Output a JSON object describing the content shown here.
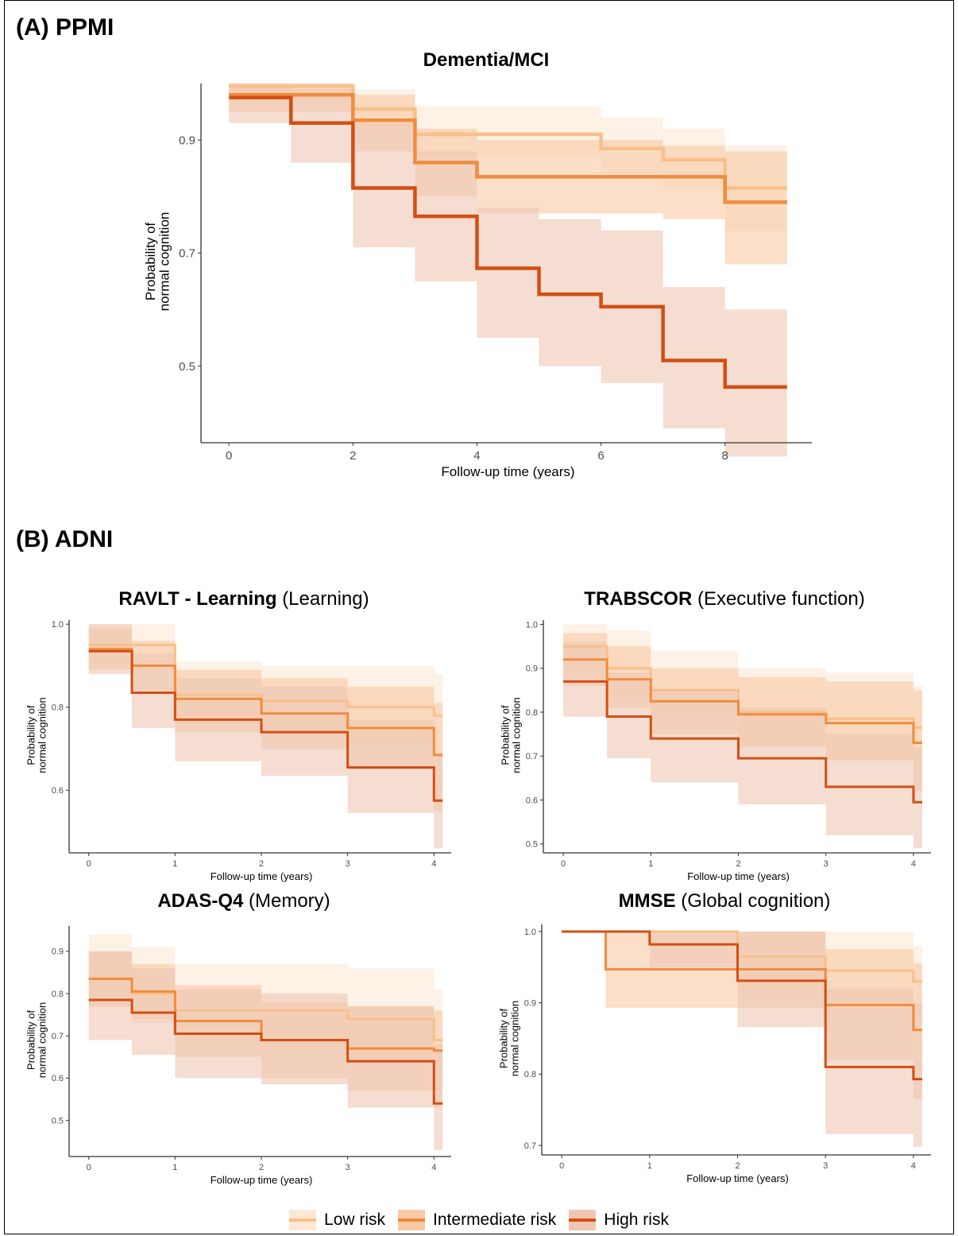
{
  "panels": {
    "a_label": "(A) PPMI",
    "b_label": "(B) ADNI"
  },
  "colors": {
    "low": "#f8c08a",
    "intermediate": "#ef8c3f",
    "high": "#d24f14",
    "low_band": "#fde8d4",
    "intermediate_band": "#f8caa4",
    "high_band": "#efc6b2",
    "axis": "#333333",
    "tick_label": "#4d4d4d"
  },
  "legend": [
    {
      "key": "low",
      "label": "Low risk"
    },
    {
      "key": "intermediate",
      "label": "Intermediate risk"
    },
    {
      "key": "high",
      "label": "High risk"
    }
  ],
  "chart_data": [
    {
      "id": "ppmi",
      "type": "line",
      "step": true,
      "title_bold": "Dementia/MCI",
      "title_rest": "",
      "xlabel": "Follow-up time (years)",
      "ylabel": [
        "Probability of",
        "normal cognition"
      ],
      "xlim": [
        -0.4,
        9.4
      ],
      "ylim": [
        0.37,
        1.0
      ],
      "xticks": [
        0,
        2,
        4,
        6,
        8
      ],
      "yticks": [
        0.5,
        0.7,
        0.9
      ],
      "series": [
        {
          "name": "Low risk",
          "key": "low",
          "x": [
            0,
            1,
            2,
            3,
            4,
            5,
            6,
            7,
            8,
            9
          ],
          "y": [
            0.995,
            0.995,
            0.955,
            0.91,
            0.91,
            0.91,
            0.885,
            0.865,
            0.815,
            0.815
          ],
          "lower": [
            0.97,
            0.97,
            0.92,
            0.87,
            0.87,
            0.87,
            0.84,
            0.81,
            0.74,
            0.74
          ],
          "upper": [
            1.0,
            1.0,
            0.99,
            0.96,
            0.96,
            0.96,
            0.94,
            0.92,
            0.89,
            0.89
          ]
        },
        {
          "name": "Intermediate risk",
          "key": "intermediate",
          "x": [
            0,
            1,
            2,
            3,
            4,
            5,
            6,
            7,
            8,
            9
          ],
          "y": [
            0.98,
            0.98,
            0.935,
            0.86,
            0.835,
            0.835,
            0.835,
            0.835,
            0.79,
            0.79
          ],
          "lower": [
            0.95,
            0.95,
            0.88,
            0.8,
            0.77,
            0.77,
            0.77,
            0.76,
            0.68,
            0.68
          ],
          "upper": [
            1.0,
            1.0,
            0.98,
            0.92,
            0.9,
            0.9,
            0.9,
            0.89,
            0.88,
            0.88
          ]
        },
        {
          "name": "High risk",
          "key": "high",
          "x": [
            0,
            1,
            2,
            3,
            4,
            5,
            6,
            7,
            8,
            9
          ],
          "y": [
            0.975,
            0.93,
            0.815,
            0.765,
            0.673,
            0.627,
            0.605,
            0.51,
            0.463,
            0.463
          ],
          "lower": [
            0.93,
            0.86,
            0.71,
            0.65,
            0.55,
            0.5,
            0.47,
            0.39,
            0.34,
            0.34
          ],
          "upper": [
            1.0,
            0.99,
            0.93,
            0.88,
            0.78,
            0.76,
            0.74,
            0.64,
            0.6,
            0.6
          ]
        }
      ]
    },
    {
      "id": "ravlt",
      "type": "line",
      "step": true,
      "title_bold": "RAVLT - Learning",
      "title_rest": " (Learning)",
      "xlabel": "Follow-up time (years)",
      "ylabel": [
        "Probability of",
        "normal cognition"
      ],
      "xlim": [
        -0.2,
        4.2
      ],
      "ylim": [
        0.455,
        1.01
      ],
      "xticks": [
        0,
        1,
        2,
        3,
        4
      ],
      "yticks": [
        0.6,
        0.8,
        1.0
      ],
      "series": [
        {
          "name": "Low risk",
          "key": "low",
          "x": [
            0,
            0.5,
            1,
            2,
            3,
            4,
            4.1
          ],
          "y": [
            0.95,
            0.95,
            0.83,
            0.815,
            0.8,
            0.78,
            0.78
          ],
          "lower": [
            0.9,
            0.9,
            0.76,
            0.74,
            0.71,
            0.68,
            0.68
          ],
          "upper": [
            1.0,
            1.0,
            0.91,
            0.9,
            0.9,
            0.88,
            0.88
          ]
        },
        {
          "name": "Intermediate risk",
          "key": "intermediate",
          "x": [
            0,
            0.5,
            1,
            2,
            3,
            4,
            4.1
          ],
          "y": [
            0.94,
            0.9,
            0.82,
            0.785,
            0.75,
            0.685,
            0.685
          ],
          "lower": [
            0.89,
            0.84,
            0.74,
            0.7,
            0.65,
            0.55,
            0.55
          ],
          "upper": [
            0.99,
            0.96,
            0.89,
            0.87,
            0.85,
            0.81,
            0.81
          ]
        },
        {
          "name": "High risk",
          "key": "high",
          "x": [
            0,
            0.5,
            1,
            2,
            3,
            4,
            4.1
          ],
          "y": [
            0.935,
            0.835,
            0.77,
            0.74,
            0.655,
            0.575,
            0.575
          ],
          "lower": [
            0.88,
            0.75,
            0.67,
            0.635,
            0.545,
            0.46,
            0.46
          ],
          "upper": [
            1.0,
            0.93,
            0.87,
            0.85,
            0.77,
            0.69,
            0.69
          ]
        }
      ]
    },
    {
      "id": "trabscor",
      "type": "line",
      "step": true,
      "title_bold": "TRABSCOR",
      "title_rest": " (Executive function)",
      "xlabel": "Follow-up time (years)",
      "ylabel": [
        "Probability of",
        "normal cognition"
      ],
      "xlim": [
        -0.2,
        4.2
      ],
      "ylim": [
        0.485,
        1.01
      ],
      "xticks": [
        0,
        1,
        2,
        3,
        4
      ],
      "yticks": [
        0.5,
        0.6,
        0.7,
        0.8,
        0.9,
        1.0
      ],
      "series": [
        {
          "name": "Low risk",
          "key": "low",
          "x": [
            0,
            0.5,
            1,
            2,
            3,
            4,
            4.1
          ],
          "y": [
            0.95,
            0.9,
            0.85,
            0.8,
            0.785,
            0.765,
            0.765
          ],
          "lower": [
            0.9,
            0.83,
            0.79,
            0.73,
            0.69,
            0.67,
            0.67
          ],
          "upper": [
            1.0,
            0.985,
            0.94,
            0.9,
            0.89,
            0.86,
            0.86
          ]
        },
        {
          "name": "Intermediate risk",
          "key": "intermediate",
          "x": [
            0,
            0.5,
            1,
            2,
            3,
            4,
            4.1
          ],
          "y": [
            0.92,
            0.875,
            0.825,
            0.795,
            0.775,
            0.73,
            0.73
          ],
          "lower": [
            0.86,
            0.81,
            0.75,
            0.72,
            0.69,
            0.62,
            0.62
          ],
          "upper": [
            0.98,
            0.95,
            0.9,
            0.88,
            0.87,
            0.85,
            0.85
          ]
        },
        {
          "name": "High risk",
          "key": "high",
          "x": [
            0,
            0.5,
            1,
            2,
            3,
            4,
            4.1
          ],
          "y": [
            0.87,
            0.79,
            0.74,
            0.695,
            0.63,
            0.595,
            0.595
          ],
          "lower": [
            0.79,
            0.695,
            0.64,
            0.59,
            0.52,
            0.49,
            0.49
          ],
          "upper": [
            0.96,
            0.89,
            0.85,
            0.81,
            0.75,
            0.72,
            0.72
          ]
        }
      ]
    },
    {
      "id": "adas",
      "type": "line",
      "step": true,
      "title_bold": "ADAS-Q4",
      "title_rest": " (Memory)",
      "xlabel": "Follow-up time (years)",
      "ylabel": [
        "Probability of",
        "normal cognition"
      ],
      "xlim": [
        -0.2,
        4.2
      ],
      "ylim": [
        0.42,
        0.96
      ],
      "xticks": [
        0,
        1,
        2,
        3,
        4
      ],
      "yticks": [
        0.5,
        0.6,
        0.7,
        0.8,
        0.9
      ],
      "series": [
        {
          "name": "Low risk",
          "key": "low",
          "x": [
            0,
            0.5,
            1,
            2,
            3,
            4,
            4.1
          ],
          "y": [
            0.835,
            0.8,
            0.76,
            0.76,
            0.74,
            0.69,
            0.69
          ],
          "lower": [
            0.77,
            0.73,
            0.68,
            0.67,
            0.64,
            0.57,
            0.57
          ],
          "upper": [
            0.94,
            0.91,
            0.87,
            0.87,
            0.86,
            0.81,
            0.81
          ]
        },
        {
          "name": "Intermediate risk",
          "key": "intermediate",
          "x": [
            0,
            0.5,
            1,
            2,
            3,
            4,
            4.1
          ],
          "y": [
            0.835,
            0.805,
            0.735,
            0.69,
            0.67,
            0.665,
            0.665
          ],
          "lower": [
            0.77,
            0.74,
            0.65,
            0.6,
            0.57,
            0.53,
            0.53
          ],
          "upper": [
            0.9,
            0.87,
            0.82,
            0.78,
            0.77,
            0.76,
            0.76
          ]
        },
        {
          "name": "High risk",
          "key": "high",
          "x": [
            0,
            0.5,
            1,
            2,
            3,
            4,
            4.1
          ],
          "y": [
            0.785,
            0.755,
            0.705,
            0.69,
            0.64,
            0.54,
            0.54
          ],
          "lower": [
            0.69,
            0.655,
            0.6,
            0.585,
            0.53,
            0.43,
            0.43
          ],
          "upper": [
            0.9,
            0.86,
            0.81,
            0.8,
            0.77,
            0.68,
            0.68
          ]
        }
      ]
    },
    {
      "id": "mmse",
      "type": "line",
      "step": true,
      "title_bold": "MMSE",
      "title_rest": " (Global cognition)",
      "xlabel": "Follow-up time (years)",
      "ylabel": [
        "Probability of",
        "normal cognition"
      ],
      "xlim": [
        -0.2,
        4.2
      ],
      "ylim": [
        0.69,
        1.01
      ],
      "xticks": [
        0,
        1,
        2,
        3,
        4
      ],
      "yticks": [
        0.7,
        0.8,
        0.9,
        1.0
      ],
      "series": [
        {
          "name": "Low risk",
          "key": "low",
          "x": [
            0,
            0.5,
            1,
            2,
            3,
            4,
            4.1
          ],
          "y": [
            1.0,
            1.0,
            1.0,
            0.965,
            0.945,
            0.93,
            0.93
          ],
          "lower": [
            1.0,
            1.0,
            1.0,
            0.92,
            0.9,
            0.88,
            0.88
          ],
          "upper": [
            1.0,
            1.0,
            1.0,
            1.0,
            1.0,
            0.98,
            0.98
          ]
        },
        {
          "name": "Intermediate risk",
          "key": "intermediate",
          "x": [
            0,
            0.5,
            1,
            2,
            3,
            4,
            4.1
          ],
          "y": [
            1.0,
            0.947,
            0.947,
            0.947,
            0.897,
            0.862,
            0.862
          ],
          "lower": [
            1.0,
            0.893,
            0.893,
            0.893,
            0.82,
            0.765,
            0.765
          ],
          "upper": [
            1.0,
            1.0,
            1.0,
            1.0,
            0.975,
            0.955,
            0.955
          ]
        },
        {
          "name": "High risk",
          "key": "high",
          "x": [
            0,
            0.5,
            1,
            2,
            3,
            4,
            4.1
          ],
          "y": [
            1.0,
            1.0,
            0.982,
            0.931,
            0.81,
            0.793,
            0.793
          ],
          "lower": [
            1.0,
            1.0,
            0.95,
            0.866,
            0.716,
            0.698,
            0.698
          ],
          "upper": [
            1.0,
            1.0,
            1.0,
            1.0,
            0.92,
            0.9,
            0.9
          ]
        }
      ]
    }
  ]
}
